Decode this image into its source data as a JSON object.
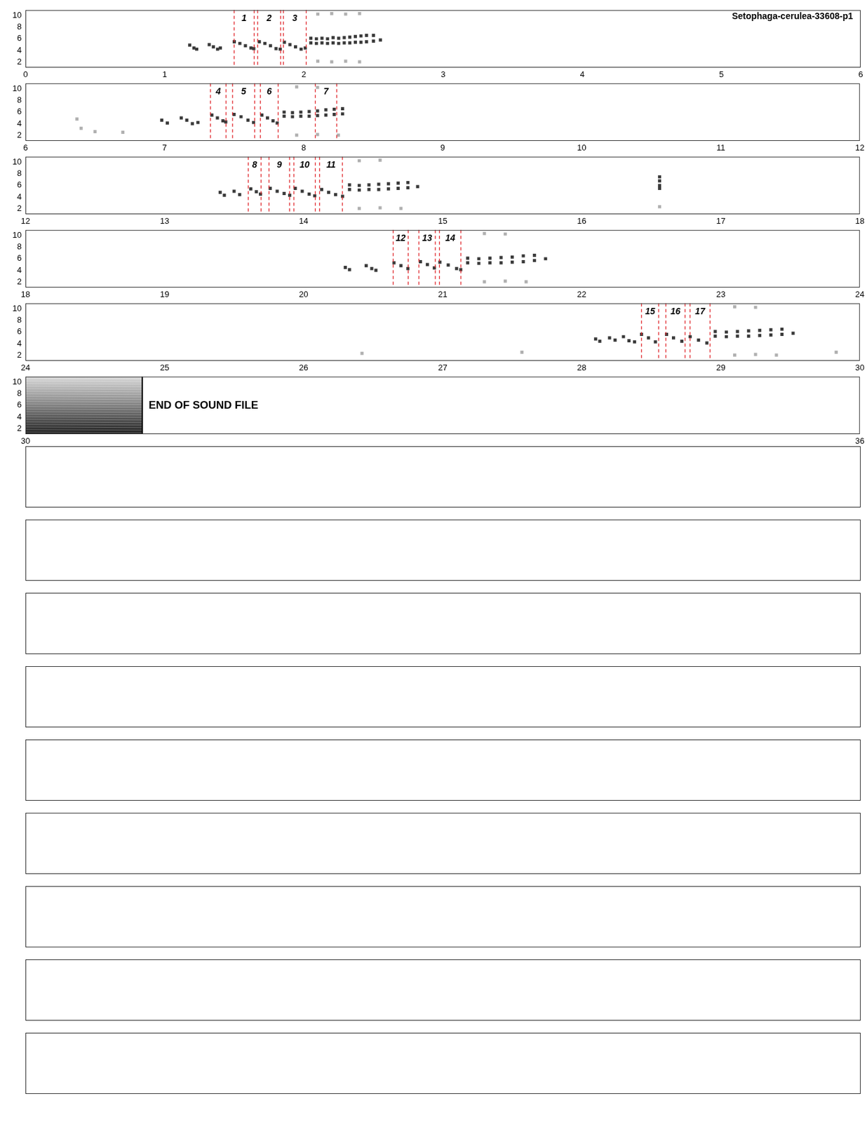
{
  "chart_data": [
    {
      "type": "scatter",
      "title": "Setophaga-cerulea-33608-p1",
      "xlim": [
        0,
        6
      ],
      "xticks": [
        0,
        1,
        2,
        3,
        4,
        5,
        6
      ],
      "ylim": [
        1,
        11
      ],
      "yticks": [
        2,
        4,
        6,
        8,
        10
      ],
      "grid": false,
      "series": [
        {
          "color": "#3a3a3a",
          "marker": "square",
          "x": [
            1.18,
            1.21,
            1.23,
            1.32,
            1.35,
            1.38,
            1.4,
            1.5,
            1.54,
            1.58,
            1.62,
            1.64,
            1.68,
            1.72,
            1.76,
            1.8,
            1.83,
            1.86,
            1.9,
            1.94,
            1.98,
            2.01,
            2.05,
            2.05,
            2.09,
            2.09,
            2.13,
            2.13,
            2.17,
            2.17,
            2.21,
            2.21,
            2.25,
            2.25,
            2.29,
            2.29,
            2.33,
            2.33,
            2.37,
            2.37,
            2.41,
            2.41,
            2.45,
            2.45,
            2.5,
            2.5,
            2.55
          ],
          "values": [
            4.9,
            4.4,
            4.2,
            5.0,
            4.6,
            4.2,
            4.4,
            5.5,
            5.2,
            4.8,
            4.4,
            4.3,
            5.5,
            5.2,
            4.8,
            4.3,
            4.2,
            5.4,
            5.0,
            4.6,
            4.2,
            4.4,
            5.3,
            6.1,
            5.2,
            6.0,
            5.3,
            6.1,
            5.2,
            6.0,
            5.3,
            6.2,
            5.2,
            6.1,
            5.3,
            6.2,
            5.3,
            6.3,
            5.4,
            6.4,
            5.4,
            6.5,
            5.5,
            6.6,
            5.6,
            6.6,
            5.8
          ]
        },
        {
          "color": "#b0b0b0",
          "marker": "square",
          "x": [
            2.1,
            2.2,
            2.3,
            2.4,
            2.1,
            2.2,
            2.3,
            2.4
          ],
          "values": [
            10.3,
            10.4,
            10.3,
            10.4,
            2.1,
            2.0,
            2.1,
            2.0
          ]
        }
      ],
      "annotations": [
        {
          "label": "1",
          "start": 1.499,
          "end": 1.643
        },
        {
          "label": "2",
          "start": 1.668,
          "end": 1.833
        },
        {
          "label": "3",
          "start": 1.853,
          "end": 2.017
        }
      ]
    },
    {
      "type": "scatter",
      "xlim": [
        6,
        12
      ],
      "xticks": [
        6,
        7,
        8,
        9,
        10,
        11,
        12
      ],
      "ylim": [
        1,
        11
      ],
      "yticks": [
        2,
        4,
        6,
        8,
        10
      ],
      "grid": false,
      "series": [
        {
          "color": "#3a3a3a",
          "marker": "square",
          "x": [
            6.98,
            7.02,
            7.12,
            7.16,
            7.2,
            7.24,
            7.34,
            7.38,
            7.42,
            7.44,
            7.5,
            7.55,
            7.6,
            7.64,
            7.7,
            7.74,
            7.78,
            7.81,
            7.86,
            7.86,
            7.92,
            7.92,
            7.98,
            7.98,
            8.04,
            8.04,
            8.1,
            8.1,
            8.16,
            8.16,
            8.22,
            8.22,
            8.28,
            8.28
          ],
          "values": [
            4.6,
            4.1,
            5.0,
            4.6,
            4.0,
            4.2,
            5.5,
            5.0,
            4.5,
            4.3,
            5.6,
            5.2,
            4.6,
            4.2,
            5.5,
            5.0,
            4.5,
            4.1,
            5.3,
            6.0,
            5.2,
            5.9,
            5.3,
            6.0,
            5.3,
            6.1,
            5.4,
            6.2,
            5.5,
            6.4,
            5.6,
            6.5,
            5.7,
            6.6
          ]
        },
        {
          "color": "#b0b0b0",
          "marker": "square",
          "x": [
            6.37,
            6.4,
            6.5,
            6.7,
            7.95,
            8.1,
            7.95,
            8.1,
            8.25
          ],
          "values": [
            4.8,
            3.2,
            2.6,
            2.5,
            10.4,
            10.3,
            2.0,
            2.1,
            2.0
          ]
        }
      ],
      "annotations": [
        {
          "label": "4",
          "start": 7.33,
          "end": 7.442
        },
        {
          "label": "5",
          "start": 7.489,
          "end": 7.648
        },
        {
          "label": "6",
          "start": 7.689,
          "end": 7.817
        },
        {
          "label": "7",
          "start": 8.084,
          "end": 8.238
        }
      ]
    },
    {
      "type": "scatter",
      "xlim": [
        12,
        18
      ],
      "xticks": [
        12,
        13,
        14,
        15,
        16,
        17,
        18
      ],
      "ylim": [
        1,
        11
      ],
      "yticks": [
        2,
        4,
        6,
        8,
        10
      ],
      "grid": false,
      "series": [
        {
          "color": "#3a3a3a",
          "marker": "square",
          "x": [
            13.4,
            13.43,
            13.5,
            13.54,
            13.62,
            13.66,
            13.69,
            13.76,
            13.81,
            13.86,
            13.9,
            13.94,
            13.99,
            14.04,
            14.08,
            14.13,
            14.18,
            14.23,
            14.28,
            14.33,
            14.33,
            14.4,
            14.4,
            14.47,
            14.47,
            14.54,
            14.54,
            14.61,
            14.61,
            14.68,
            14.68,
            14.75,
            14.75,
            14.82,
            16.56,
            16.56,
            16.56,
            16.56
          ],
          "values": [
            4.8,
            4.3,
            5.0,
            4.4,
            5.4,
            4.9,
            4.5,
            5.5,
            5.0,
            4.6,
            4.3,
            5.5,
            5.0,
            4.5,
            4.2,
            5.3,
            4.8,
            4.4,
            4.1,
            5.3,
            6.1,
            5.2,
            6.0,
            5.3,
            6.1,
            5.3,
            6.2,
            5.4,
            6.3,
            5.5,
            6.4,
            5.6,
            6.5,
            5.8,
            7.5,
            6.8,
            6.0,
            5.5
          ]
        },
        {
          "color": "#b0b0b0",
          "marker": "square",
          "x": [
            14.4,
            14.55,
            14.4,
            14.55,
            14.7,
            16.56
          ],
          "values": [
            10.3,
            10.4,
            2.0,
            2.1,
            2.0,
            2.3
          ]
        }
      ],
      "annotations": [
        {
          "label": "8",
          "start": 13.602,
          "end": 13.694
        },
        {
          "label": "9",
          "start": 13.751,
          "end": 13.899
        },
        {
          "label": "10",
          "start": 13.93,
          "end": 14.084
        },
        {
          "label": "11",
          "start": 14.115,
          "end": 14.279
        }
      ]
    },
    {
      "type": "scatter",
      "xlim": [
        18,
        24
      ],
      "xticks": [
        18,
        19,
        20,
        21,
        22,
        23,
        24
      ],
      "ylim": [
        1,
        11
      ],
      "yticks": [
        2,
        4,
        6,
        8,
        10
      ],
      "grid": false,
      "series": [
        {
          "color": "#3a3a3a",
          "marker": "square",
          "x": [
            20.3,
            20.33,
            20.45,
            20.49,
            20.52,
            20.65,
            20.7,
            20.75,
            20.84,
            20.89,
            20.94,
            20.98,
            21.04,
            21.1,
            21.13,
            21.18,
            21.18,
            21.26,
            21.26,
            21.34,
            21.34,
            21.42,
            21.42,
            21.5,
            21.5,
            21.58,
            21.58,
            21.66,
            21.66,
            21.74
          ],
          "values": [
            4.5,
            4.1,
            4.8,
            4.3,
            4.0,
            5.3,
            4.8,
            4.3,
            5.5,
            5.0,
            4.4,
            5.4,
            4.9,
            4.3,
            4.1,
            5.3,
            6.1,
            5.2,
            6.0,
            5.3,
            6.1,
            5.3,
            6.2,
            5.4,
            6.3,
            5.5,
            6.5,
            5.7,
            6.6,
            6.0
          ]
        },
        {
          "color": "#b0b0b0",
          "marker": "square",
          "x": [
            21.3,
            21.45,
            21.3,
            21.45,
            21.6
          ],
          "values": [
            10.4,
            10.3,
            2.0,
            2.1,
            2.0
          ]
        }
      ],
      "annotations": [
        {
          "label": "12",
          "start": 20.644,
          "end": 20.752
        },
        {
          "label": "13",
          "start": 20.829,
          "end": 20.947
        },
        {
          "label": "14",
          "start": 20.977,
          "end": 21.131
        }
      ]
    },
    {
      "type": "scatter",
      "xlim": [
        24,
        30
      ],
      "xticks": [
        24,
        25,
        26,
        27,
        28,
        29,
        30
      ],
      "ylim": [
        1,
        11
      ],
      "yticks": [
        2,
        4,
        6,
        8,
        10
      ],
      "grid": false,
      "series": [
        {
          "color": "#3a3a3a",
          "marker": "square",
          "x": [
            28.1,
            28.13,
            28.2,
            28.24,
            28.3,
            28.34,
            28.38,
            28.43,
            28.48,
            28.53,
            28.61,
            28.66,
            28.72,
            28.78,
            28.84,
            28.9,
            28.96,
            28.96,
            29.04,
            29.04,
            29.12,
            29.12,
            29.2,
            29.2,
            29.28,
            29.28,
            29.36,
            29.36,
            29.44,
            29.44,
            29.52
          ],
          "values": [
            4.8,
            4.4,
            5.0,
            4.6,
            5.2,
            4.5,
            4.3,
            5.6,
            5.0,
            4.3,
            5.6,
            5.0,
            4.4,
            5.2,
            4.6,
            4.1,
            5.3,
            6.1,
            5.2,
            6.0,
            5.3,
            6.1,
            5.3,
            6.2,
            5.4,
            6.3,
            5.5,
            6.4,
            5.6,
            6.5,
            5.8
          ]
        },
        {
          "color": "#b0b0b0",
          "marker": "square",
          "x": [
            29.1,
            29.25,
            29.1,
            29.25,
            29.4,
            26.42,
            27.57,
            29.83
          ],
          "values": [
            10.4,
            10.3,
            2.0,
            2.1,
            2.0,
            2.3,
            2.5,
            2.5
          ]
        }
      ],
      "annotations": [
        {
          "label": "15",
          "start": 28.43,
          "end": 28.553
        },
        {
          "label": "16",
          "start": 28.605,
          "end": 28.743
        },
        {
          "label": "17",
          "start": 28.779,
          "end": 28.923
        }
      ]
    },
    {
      "type": "scatter",
      "xlim": [
        30,
        36
      ],
      "xticks": [
        30,
        36
      ],
      "ylim": [
        1,
        11
      ],
      "yticks": [
        2,
        4,
        6,
        8,
        10
      ],
      "grid": false,
      "series": [],
      "noise": [
        30,
        30.84
      ],
      "end_marker": {
        "x": 30.84,
        "label": "END OF SOUND FILE"
      },
      "annotations": []
    }
  ]
}
